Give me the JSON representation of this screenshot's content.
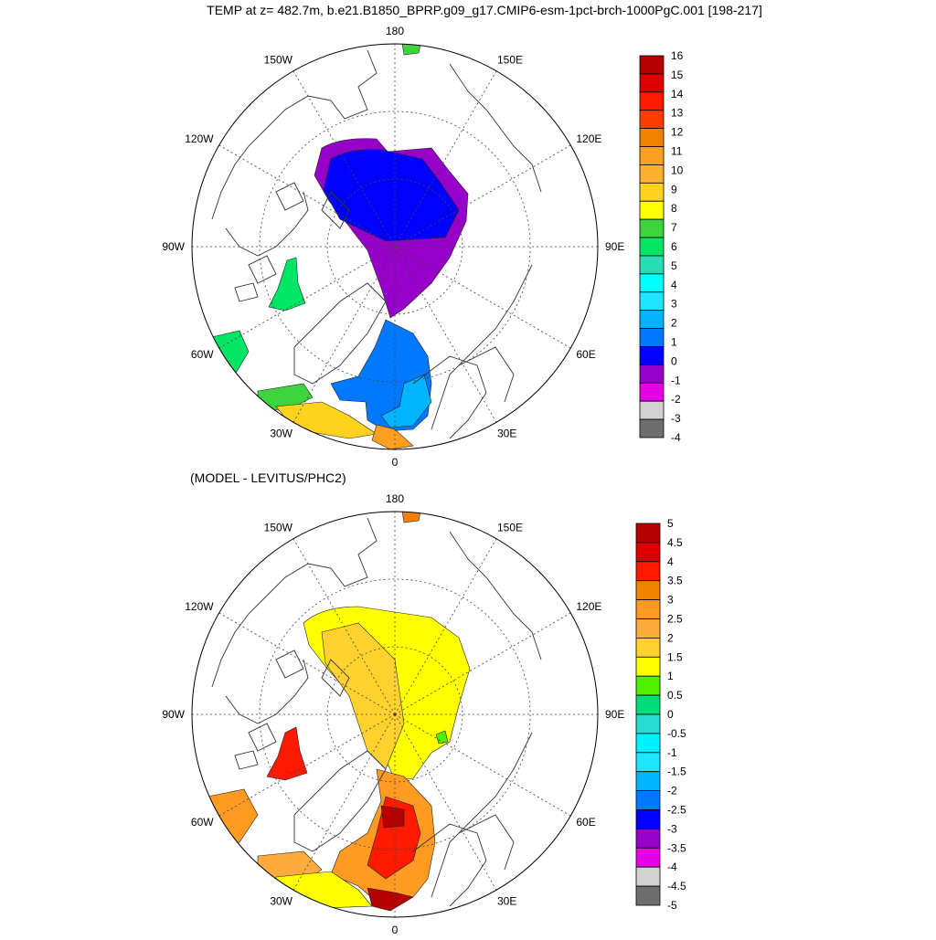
{
  "title": "TEMP at z= 482.7m, b.e21.B1850_BPRP.g09_g17.CMIP6-esm-1pct-brch-1000PgC.001 [198-217]",
  "lon_labels": [
    "180",
    "150E",
    "120E",
    "90E",
    "60E",
    "30E",
    "0",
    "30W",
    "60W",
    "90W",
    "120W",
    "150W"
  ],
  "colors": {
    "land_outline": "#333333",
    "grid": "#444444"
  },
  "panels": [
    {
      "id": "top",
      "subtitle": "",
      "colorbar": {
        "labels": [
          "16",
          "15",
          "14",
          "13",
          "12",
          "11",
          "10",
          "9",
          "8",
          "7",
          "6",
          "5",
          "4",
          "3",
          "2",
          "1",
          "0",
          "-1",
          "-2",
          "-3",
          "-4"
        ],
        "colors": [
          "#b40000",
          "#e10000",
          "#ff1a00",
          "#ff3c00",
          "#f08200",
          "#ff9f22",
          "#ffb030",
          "#ffd21e",
          "#ffff00",
          "#3ed43e",
          "#00e664",
          "#28dcb4",
          "#00ffff",
          "#1ee6ff",
          "#00b4ff",
          "#0078ff",
          "#0000ff",
          "#9600c8",
          "#e600e6",
          "#d2d2d2",
          "#6e6e6e"
        ]
      }
    },
    {
      "id": "bottom",
      "subtitle": "(MODEL - LEVITUS/PHC2)",
      "colorbar": {
        "labels": [
          "5",
          "4.5",
          "4",
          "3.5",
          "3",
          "2.5",
          "2",
          "1.5",
          "1",
          "0.5",
          "0",
          "-0.5",
          "-1",
          "-1.5",
          "-2",
          "-2.5",
          "-3",
          "-3.5",
          "-4",
          "-4.5",
          "-5"
        ],
        "colors": [
          "#b40000",
          "#dc0000",
          "#ff1a00",
          "#f08200",
          "#ff9a22",
          "#ffac3c",
          "#ffd22d",
          "#ffff00",
          "#50f000",
          "#00dc78",
          "#28dcd2",
          "#00f0ff",
          "#1ee6ff",
          "#00b4ff",
          "#0078ff",
          "#0000ff",
          "#9600c8",
          "#e600e6",
          "#d2d2d2",
          "#6e6e6e"
        ]
      }
    }
  ]
}
